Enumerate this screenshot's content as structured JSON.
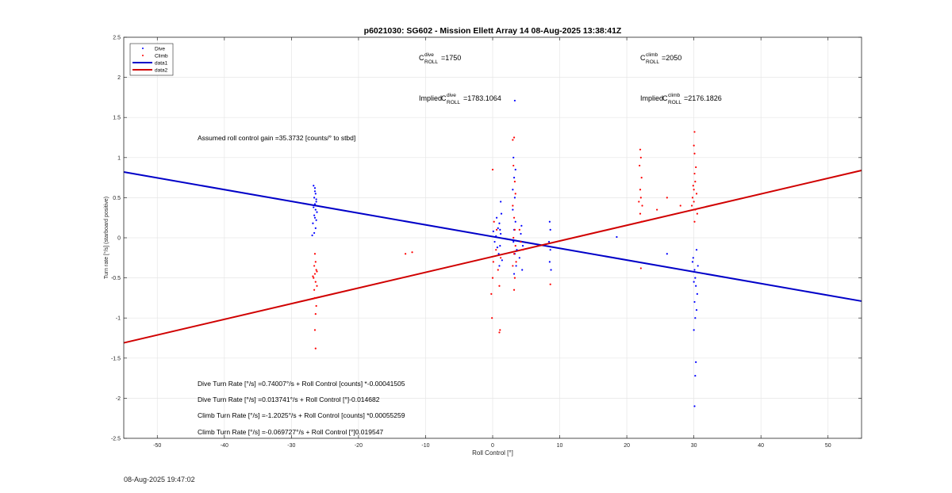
{
  "chart_data": {
    "type": "scatter",
    "title": "p6021030: SG602 - Mission Ellett Array 14 08-Aug-2025 13:38:41Z",
    "xlabel": "Roll Control [°]",
    "ylabel": "Turn rate [°/s] (starboard positive)",
    "xlim": [
      -55,
      55
    ],
    "ylim": [
      -2.5,
      2.5
    ],
    "xticks": [
      -50,
      -40,
      -30,
      -20,
      -10,
      0,
      10,
      20,
      30,
      40,
      50
    ],
    "yticks": [
      -2.5,
      -2,
      -1.5,
      -1,
      -0.5,
      0,
      0.5,
      1,
      1.5,
      2,
      2.5
    ],
    "xtick_labels": [
      "-50",
      "-40",
      "-30",
      "-20",
      "-10",
      "0",
      "10",
      "20",
      "30",
      "40",
      "50"
    ],
    "ytick_labels": [
      "-2.5",
      "-2",
      "-1.5",
      "-1",
      "-0.5",
      "0",
      "0.5",
      "1",
      "1.5",
      "2",
      "2.5"
    ],
    "grid": true,
    "legend_position": "top-left",
    "colors": {
      "dive": "#0000ff",
      "climb": "#ff0000",
      "data1": "#0000c8",
      "data2": "#d00000"
    },
    "series": [
      {
        "name": "Dive",
        "kind": "points",
        "points": [
          [
            -26.5,
            0.62
          ],
          [
            -26.4,
            0.55
          ],
          [
            -26.6,
            0.5
          ],
          [
            -26.3,
            0.45
          ],
          [
            -26.5,
            0.42
          ],
          [
            -26.7,
            0.38
          ],
          [
            -26.4,
            0.35
          ],
          [
            -26.2,
            0.32
          ],
          [
            -26.6,
            0.28
          ],
          [
            -26.5,
            0.25
          ],
          [
            -26.3,
            0.22
          ],
          [
            -26.8,
            0.18
          ],
          [
            -26.4,
            0.12
          ],
          [
            -26.6,
            0.06
          ],
          [
            -26.9,
            0.03
          ],
          [
            -26.3,
            0.48
          ],
          [
            -26.5,
            0.58
          ],
          [
            -26.7,
            0.65
          ],
          [
            0.1,
            0.08
          ],
          [
            0.3,
            -0.05
          ],
          [
            0.5,
            0.02
          ],
          [
            0.8,
            0.12
          ],
          [
            1.0,
            0.18
          ],
          [
            1.1,
            -0.1
          ],
          [
            1.2,
            0.05
          ],
          [
            0.9,
            -0.2
          ],
          [
            1.3,
            0.3
          ],
          [
            1.0,
            -0.35
          ],
          [
            0.6,
            0.25
          ],
          [
            1.4,
            -0.28
          ],
          [
            1.2,
            0.45
          ],
          [
            1.1,
            0.1
          ],
          [
            0.7,
            -0.12
          ],
          [
            3.1,
            1.0
          ],
          [
            3.2,
            0.75
          ],
          [
            3.3,
            0.5
          ],
          [
            3.0,
            0.35
          ],
          [
            3.4,
            0.2
          ],
          [
            3.2,
            0.1
          ],
          [
            3.1,
            -0.05
          ],
          [
            3.3,
            -0.2
          ],
          [
            3.5,
            -0.35
          ],
          [
            3.2,
            -0.45
          ],
          [
            3.0,
            0.6
          ],
          [
            3.4,
            0.85
          ],
          [
            3.6,
            -0.15
          ],
          [
            3.3,
            1.71
          ],
          [
            4.2,
            0.05
          ],
          [
            4.5,
            -0.1
          ],
          [
            4.0,
            -0.25
          ],
          [
            4.3,
            0.15
          ],
          [
            4.4,
            -0.4
          ],
          [
            8.5,
            0.2
          ],
          [
            8.6,
            0.1
          ],
          [
            8.4,
            -0.05
          ],
          [
            8.6,
            -0.15
          ],
          [
            8.5,
            -0.3
          ],
          [
            8.7,
            -0.4
          ],
          [
            18.5,
            0.01
          ],
          [
            26.0,
            -0.2
          ],
          [
            29.8,
            -0.3
          ],
          [
            30.1,
            -0.4
          ],
          [
            30.2,
            -0.5
          ],
          [
            30.0,
            -0.55
          ],
          [
            30.3,
            -0.6
          ],
          [
            30.5,
            -0.7
          ],
          [
            30.1,
            -0.8
          ],
          [
            30.4,
            -0.9
          ],
          [
            30.2,
            -1.0
          ],
          [
            30.0,
            -1.15
          ],
          [
            30.3,
            -1.55
          ],
          [
            30.2,
            -1.72
          ],
          [
            30.1,
            -2.1
          ],
          [
            30.4,
            -0.15
          ],
          [
            30.6,
            -0.35
          ],
          [
            29.9,
            -0.25
          ]
        ]
      },
      {
        "name": "Climb",
        "kind": "points",
        "points": [
          [
            -26.5,
            -0.2
          ],
          [
            -26.4,
            -0.3
          ],
          [
            -26.6,
            -0.35
          ],
          [
            -26.3,
            -0.4
          ],
          [
            -26.5,
            -0.45
          ],
          [
            -26.7,
            -0.5
          ],
          [
            -26.4,
            -0.55
          ],
          [
            -26.2,
            -0.6
          ],
          [
            -26.6,
            -0.65
          ],
          [
            -26.5,
            -0.75
          ],
          [
            -26.3,
            -0.85
          ],
          [
            -26.4,
            -0.95
          ],
          [
            -26.5,
            -1.15
          ],
          [
            -26.4,
            -1.38
          ],
          [
            -26.8,
            -0.48
          ],
          [
            -26.2,
            -0.42
          ],
          [
            -13.0,
            -0.2
          ],
          [
            -12.0,
            -0.18
          ],
          [
            -0.2,
            -0.7
          ],
          [
            0.0,
            -0.5
          ],
          [
            0.1,
            -0.3
          ],
          [
            0.2,
            0.2
          ],
          [
            0.0,
            0.85
          ],
          [
            -0.1,
            -1.0
          ],
          [
            0.5,
            -0.15
          ],
          [
            0.8,
            -0.4
          ],
          [
            1.0,
            -0.6
          ],
          [
            1.1,
            -1.15
          ],
          [
            1.0,
            -1.18
          ],
          [
            0.6,
            0.1
          ],
          [
            1.2,
            -0.25
          ],
          [
            3.0,
            1.22
          ],
          [
            3.2,
            1.25
          ],
          [
            3.1,
            0.9
          ],
          [
            3.3,
            0.7
          ],
          [
            3.4,
            0.55
          ],
          [
            3.0,
            0.4
          ],
          [
            3.2,
            0.25
          ],
          [
            3.3,
            0.1
          ],
          [
            3.1,
            0.0
          ],
          [
            3.4,
            -0.1
          ],
          [
            3.2,
            -0.2
          ],
          [
            3.5,
            -0.3
          ],
          [
            3.0,
            -0.35
          ],
          [
            3.3,
            -0.5
          ],
          [
            3.2,
            -0.65
          ],
          [
            4.2,
            -0.05
          ],
          [
            4.5,
            -0.15
          ],
          [
            4.0,
            0.1
          ],
          [
            8.6,
            -0.58
          ],
          [
            22.0,
            1.1
          ],
          [
            22.1,
            1.0
          ],
          [
            21.9,
            0.9
          ],
          [
            22.2,
            0.75
          ],
          [
            22.0,
            0.6
          ],
          [
            22.1,
            0.5
          ],
          [
            22.3,
            0.4
          ],
          [
            22.0,
            0.3
          ],
          [
            22.2,
            0.2
          ],
          [
            22.1,
            -0.38
          ],
          [
            21.8,
            0.45
          ],
          [
            24.5,
            0.35
          ],
          [
            26.0,
            0.5
          ],
          [
            28.0,
            0.4
          ],
          [
            29.8,
            0.5
          ],
          [
            30.0,
            0.6
          ],
          [
            30.2,
            0.7
          ],
          [
            30.1,
            0.8
          ],
          [
            30.3,
            0.88
          ],
          [
            29.9,
            0.65
          ],
          [
            30.4,
            0.55
          ],
          [
            30.0,
            0.45
          ],
          [
            30.2,
            0.35
          ],
          [
            30.1,
            0.2
          ],
          [
            30.1,
            1.05
          ],
          [
            30.0,
            1.15
          ],
          [
            30.1,
            1.32
          ],
          [
            30.5,
            0.3
          ],
          [
            29.7,
            0.4
          ]
        ]
      },
      {
        "name": "data1",
        "kind": "line",
        "x": [
          -55,
          55
        ],
        "y": [
          0.82,
          -0.79
        ]
      },
      {
        "name": "data2",
        "kind": "line",
        "x": [
          -55,
          55
        ],
        "y": [
          -1.31,
          0.84
        ]
      }
    ],
    "annotations": {
      "c_roll_dive": "=1750",
      "c_roll_climb": "=2050",
      "implied_dive_prefix": "Implied ",
      "implied_dive_value": "=1783.1064",
      "implied_climb_prefix": "Implied ",
      "implied_climb_value": "=2176.1826",
      "c_letter": "C",
      "sup_dive": "dive",
      "sup_climb": "climb",
      "sub_roll": "ROLL",
      "gain_text": "Assumed roll control gain =35.3732 [counts/° to stbd]",
      "eq1": "Dive Turn Rate [°/s] =0.74007°/s + Roll Control [counts] *-0.00041505",
      "eq2": "Dive Turn Rate [°/s] =0.013741°/s + Roll Control [°]-0.014682",
      "eq3": "Climb Turn Rate [°/s] =-1.2025°/s + Roll Control [counts] *0.00055259",
      "eq4": "Climb Turn Rate [°/s] =-0.069727°/s + Roll Control [°]0.019547"
    }
  },
  "footer": {
    "timestamp": "08-Aug-2025 19:47:02"
  }
}
